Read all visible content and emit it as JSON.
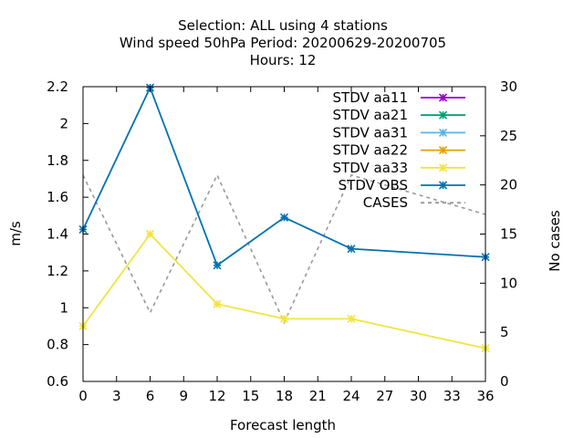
{
  "chart_data": {
    "type": "line",
    "title_lines": [
      "Selection: ALL using     4 stations",
      "Wind speed 50hPa   Period: 20200629-20200705",
      "Hours:  12"
    ],
    "xlabel": "Forecast length",
    "ylabel": "m/s",
    "y2label": "No cases",
    "xlim": [
      0,
      36
    ],
    "ylim": [
      0.6,
      2.2
    ],
    "y2lim": [
      0,
      30
    ],
    "x_ticks": [
      0,
      3,
      6,
      9,
      12,
      15,
      18,
      21,
      24,
      27,
      30,
      33,
      36
    ],
    "y_ticks": [
      "0.6",
      "0.8",
      "1",
      "1.2",
      "1.4",
      "1.6",
      "1.8",
      "2",
      "2.2"
    ],
    "y2_ticks": [
      0,
      5,
      10,
      15,
      20,
      25,
      30
    ],
    "legend_position": "top-right",
    "series": [
      {
        "name": "STDV aa11",
        "color": "#9400d3",
        "marker": "star",
        "x": [],
        "y": []
      },
      {
        "name": "STDV aa21",
        "color": "#009e73",
        "marker": "star",
        "x": [],
        "y": []
      },
      {
        "name": "STDV aa31",
        "color": "#56b4e9",
        "marker": "star",
        "x": [],
        "y": []
      },
      {
        "name": "STDV aa22",
        "color": "#e69f00",
        "marker": "star",
        "x": [],
        "y": []
      },
      {
        "name": "STDV aa33",
        "color": "#f0e442",
        "marker": "star",
        "x": [
          0,
          6,
          12,
          18,
          24,
          36
        ],
        "y": [
          0.9,
          1.4,
          1.02,
          0.94,
          0.94,
          0.78
        ]
      },
      {
        "name": "STDV OBS",
        "color": "#0072b2",
        "marker": "star",
        "x": [
          0,
          6,
          12,
          18,
          24,
          36
        ],
        "y": [
          1.425,
          2.195,
          1.23,
          1.49,
          1.32,
          1.275
        ]
      },
      {
        "name": "CASES",
        "color": "#999999",
        "marker": "none",
        "dashed": true,
        "axis": "y2",
        "x": [
          0,
          6,
          12,
          18,
          24,
          36
        ],
        "y": [
          21,
          7,
          21,
          6,
          21,
          17
        ]
      }
    ]
  }
}
